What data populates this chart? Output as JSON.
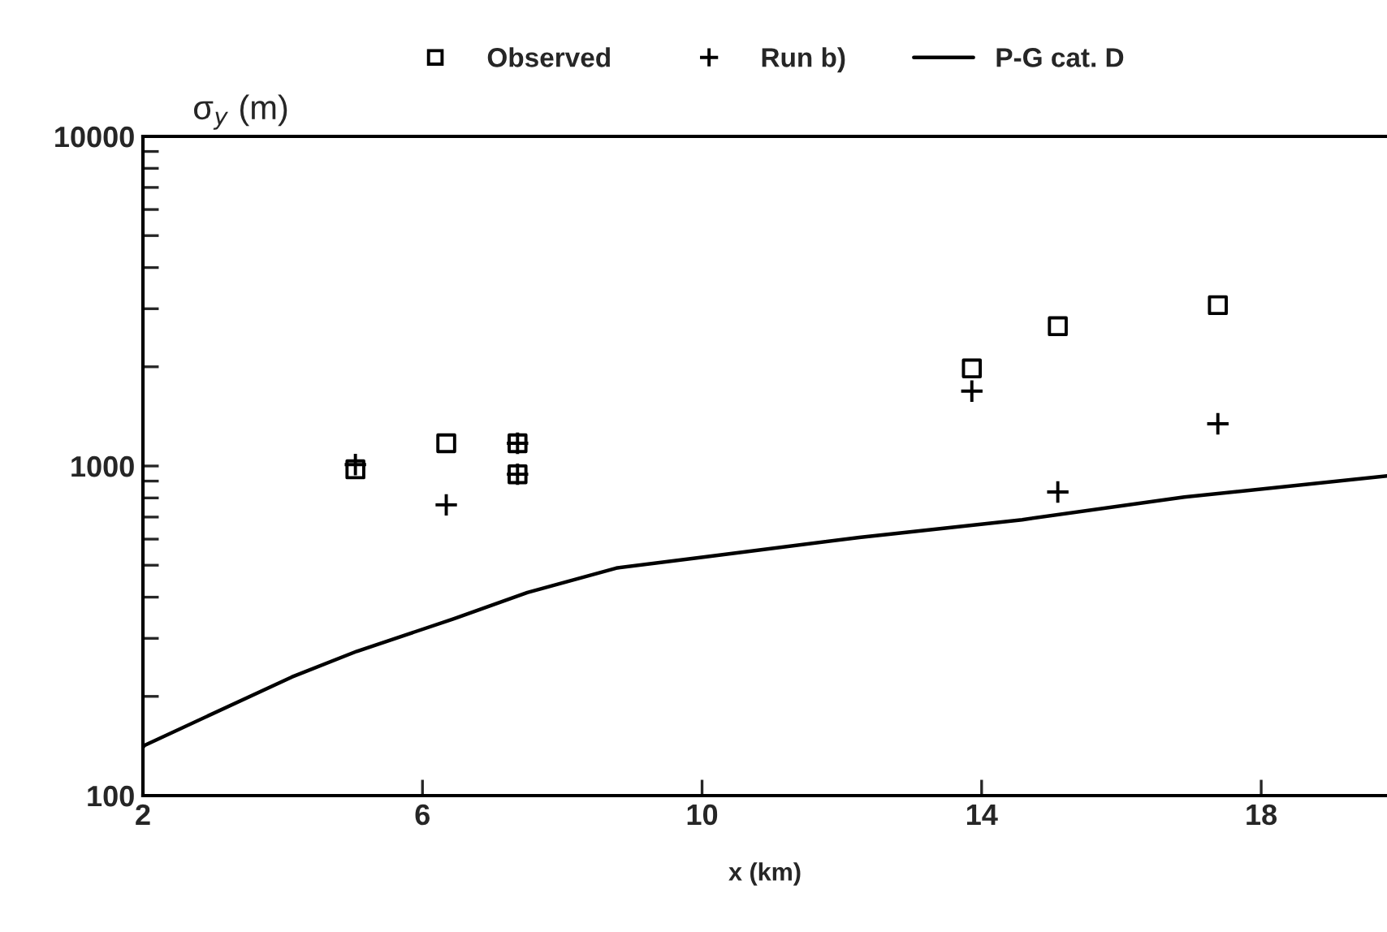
{
  "chart_data": {
    "type": "scatter",
    "xlabel": "x (km)",
    "ylabel": "σ$_{y}$ (m)",
    "log": "y",
    "xlim": [
      2,
      19.8
    ],
    "ylim": [
      100,
      10000
    ],
    "xticks": [
      2,
      6,
      10,
      14,
      18
    ],
    "yticks": [
      100,
      1000,
      10000
    ],
    "legend": "top",
    "grid": false,
    "series": [
      {
        "name": "Observed",
        "marker": "square",
        "color": "#000000",
        "x": [
          5.04,
          6.34,
          7.36,
          7.36,
          13.86,
          15.09,
          17.38
        ],
        "values": [
          977,
          1172,
          1172,
          944,
          1977,
          2655,
          3076
        ]
      },
      {
        "name": "Run b)",
        "marker": "cross",
        "color": "#000000",
        "x": [
          5.04,
          6.34,
          7.36,
          7.36,
          13.86,
          15.09,
          17.38
        ],
        "values": [
          1010,
          762,
          1172,
          944,
          1687,
          834,
          1343
        ]
      },
      {
        "name": "P-G cat. D",
        "type": "line",
        "marker": "none",
        "line_style": "solid",
        "color": "#000000",
        "x": [
          2.0,
          2.02,
          4.13,
          5.06,
          6.45,
          7.5,
          8.77,
          10.04,
          12.25,
          14.58,
          16.9,
          19.8
        ],
        "values": [
          140,
          142,
          229,
          274,
          344,
          413,
          490,
          530,
          607,
          687,
          805,
          933
        ]
      }
    ]
  }
}
